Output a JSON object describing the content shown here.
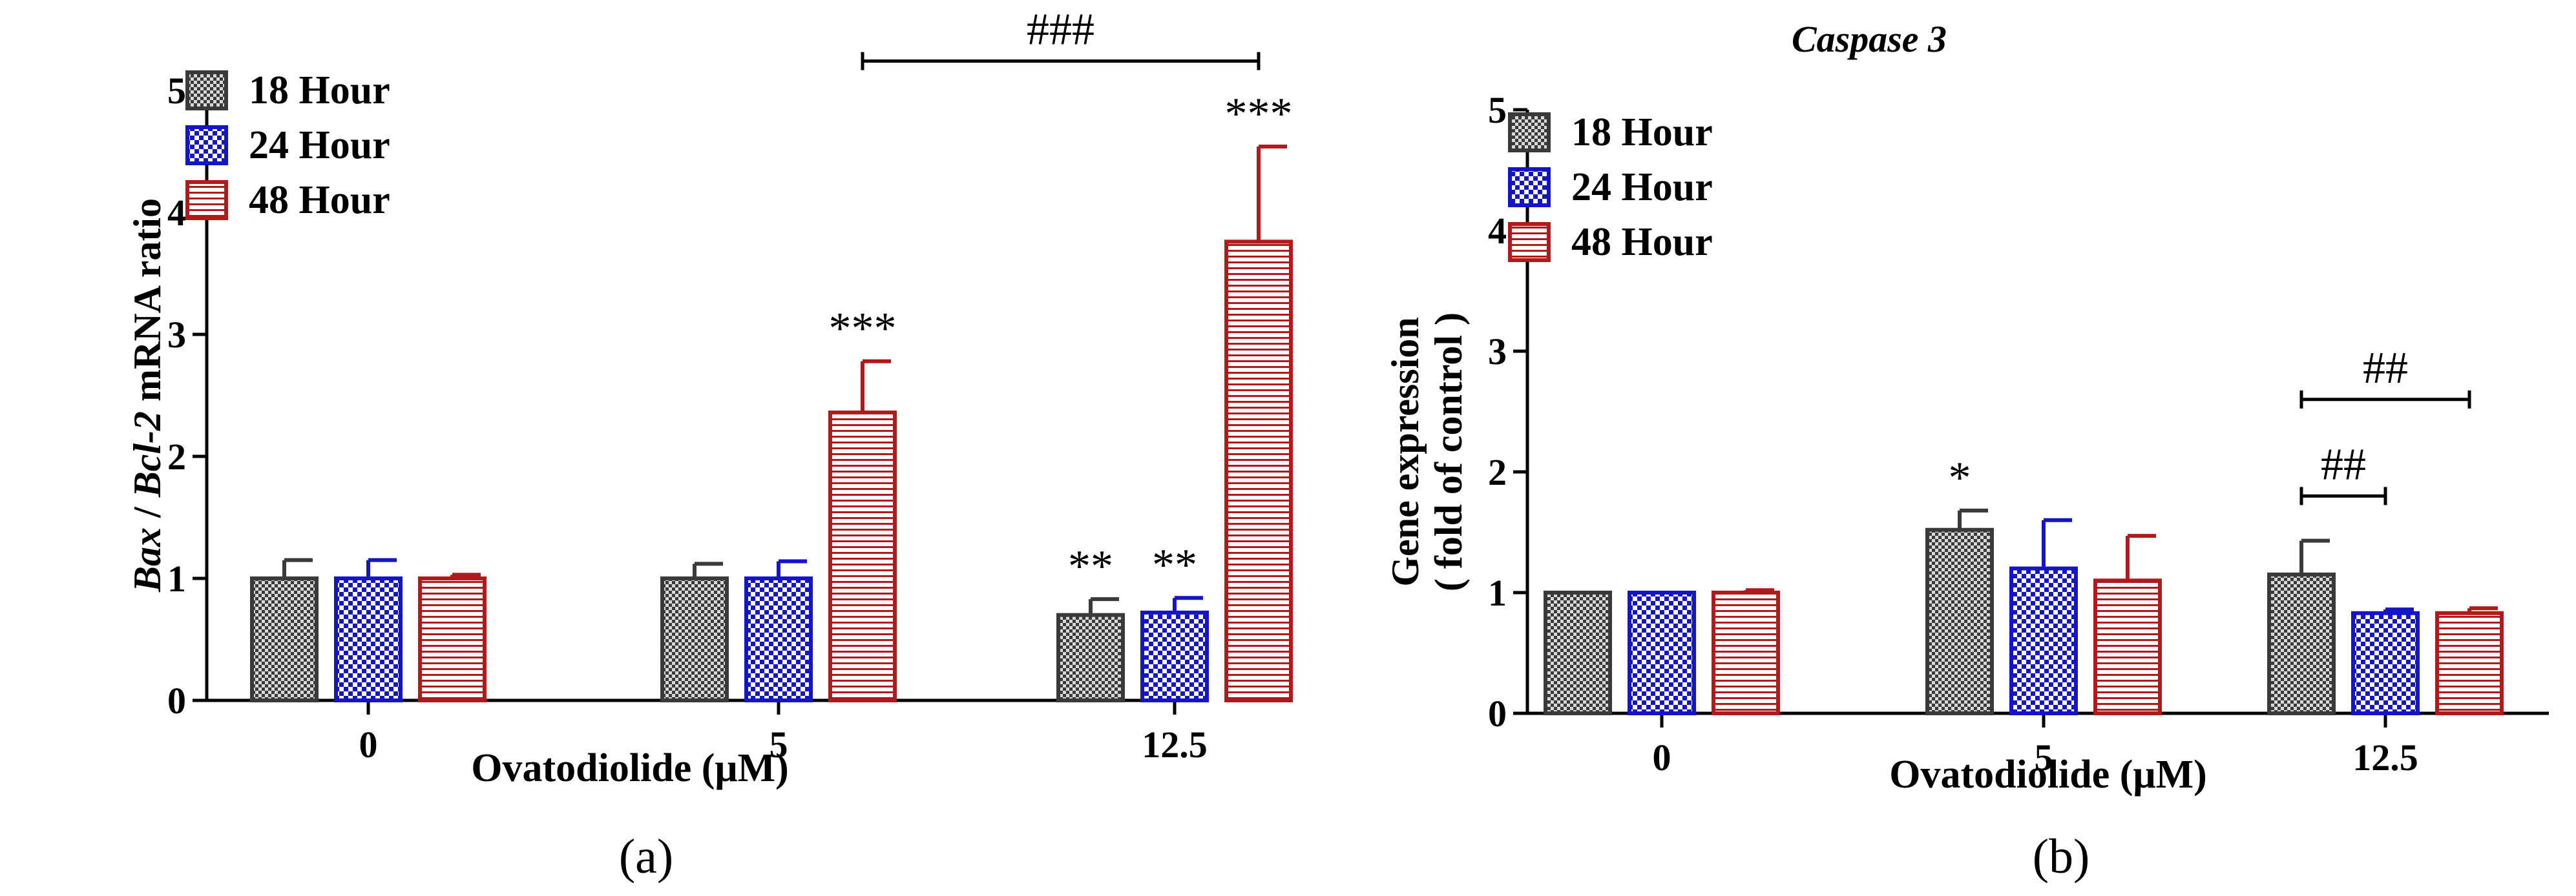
{
  "colors": {
    "s18": "#3a3a3a",
    "s24": "#1515c8",
    "s48": "#b01a1a"
  },
  "chart_data": [
    {
      "type": "bar",
      "panel_label": "(a)",
      "title": "",
      "xlabel": "Ovatodiolide (μM)",
      "ylabel_parts": [
        {
          "text": "Bax",
          "italic": true
        },
        {
          "text": " / ",
          "italic": false
        },
        {
          "text": "Bcl-2",
          "italic": true
        },
        {
          "text": " mRNA ratio",
          "italic": false
        }
      ],
      "ylim": [
        0,
        5
      ],
      "yticks": [
        "0",
        "1",
        "2",
        "3",
        "4",
        "5"
      ],
      "categories": [
        "0",
        "5",
        "12.5"
      ],
      "series": [
        {
          "name": "18 Hour",
          "values": [
            1.0,
            1.0,
            0.7
          ],
          "errors": [
            0.15,
            0.12,
            0.13
          ]
        },
        {
          "name": "24 Hour",
          "values": [
            1.0,
            1.0,
            0.72
          ],
          "errors": [
            0.15,
            0.14,
            0.12
          ]
        },
        {
          "name": "48 Hour",
          "values": [
            1.0,
            2.36,
            3.76
          ],
          "errors": [
            0.03,
            0.42,
            0.78
          ]
        }
      ],
      "bar_annotations": [
        {
          "series": 2,
          "category": 1,
          "text": "***"
        },
        {
          "series": 0,
          "category": 2,
          "text": "**"
        },
        {
          "series": 1,
          "category": 2,
          "text": "**"
        },
        {
          "series": 2,
          "category": 2,
          "text": "***"
        }
      ],
      "brackets": [
        {
          "from": {
            "series": 2,
            "category": 1
          },
          "to": {
            "series": 2,
            "category": 2
          },
          "level": 5.24,
          "text": "###"
        }
      ]
    },
    {
      "type": "bar",
      "panel_label": "(b)",
      "title": "Caspase 3",
      "xlabel": "Ovatodiolide (μM)",
      "ylabel_lines": [
        "Gene expression",
        "( fold of control )"
      ],
      "ylim": [
        0,
        5
      ],
      "yticks": [
        "0",
        "1",
        "2",
        "3",
        "4",
        "5"
      ],
      "categories": [
        "0",
        "5",
        "12.5"
      ],
      "series": [
        {
          "name": "18 Hour",
          "values": [
            1.0,
            1.52,
            1.15
          ],
          "errors": [
            0.0,
            0.16,
            0.28
          ]
        },
        {
          "name": "24 Hour",
          "values": [
            1.0,
            1.2,
            0.83
          ],
          "errors": [
            0.0,
            0.4,
            0.03
          ]
        },
        {
          "name": "48 Hour",
          "values": [
            1.0,
            1.1,
            0.83
          ],
          "errors": [
            0.02,
            0.37,
            0.04
          ]
        }
      ],
      "bar_annotations": [
        {
          "series": 0,
          "category": 1,
          "text": "*"
        }
      ],
      "brackets": [
        {
          "from": {
            "series": 0,
            "category": 2
          },
          "to": {
            "series": 1,
            "category": 2
          },
          "level": 1.8,
          "text": "##"
        },
        {
          "from": {
            "series": 0,
            "category": 2
          },
          "to": {
            "series": 2,
            "category": 2
          },
          "level": 2.6,
          "text": "##"
        }
      ]
    }
  ]
}
